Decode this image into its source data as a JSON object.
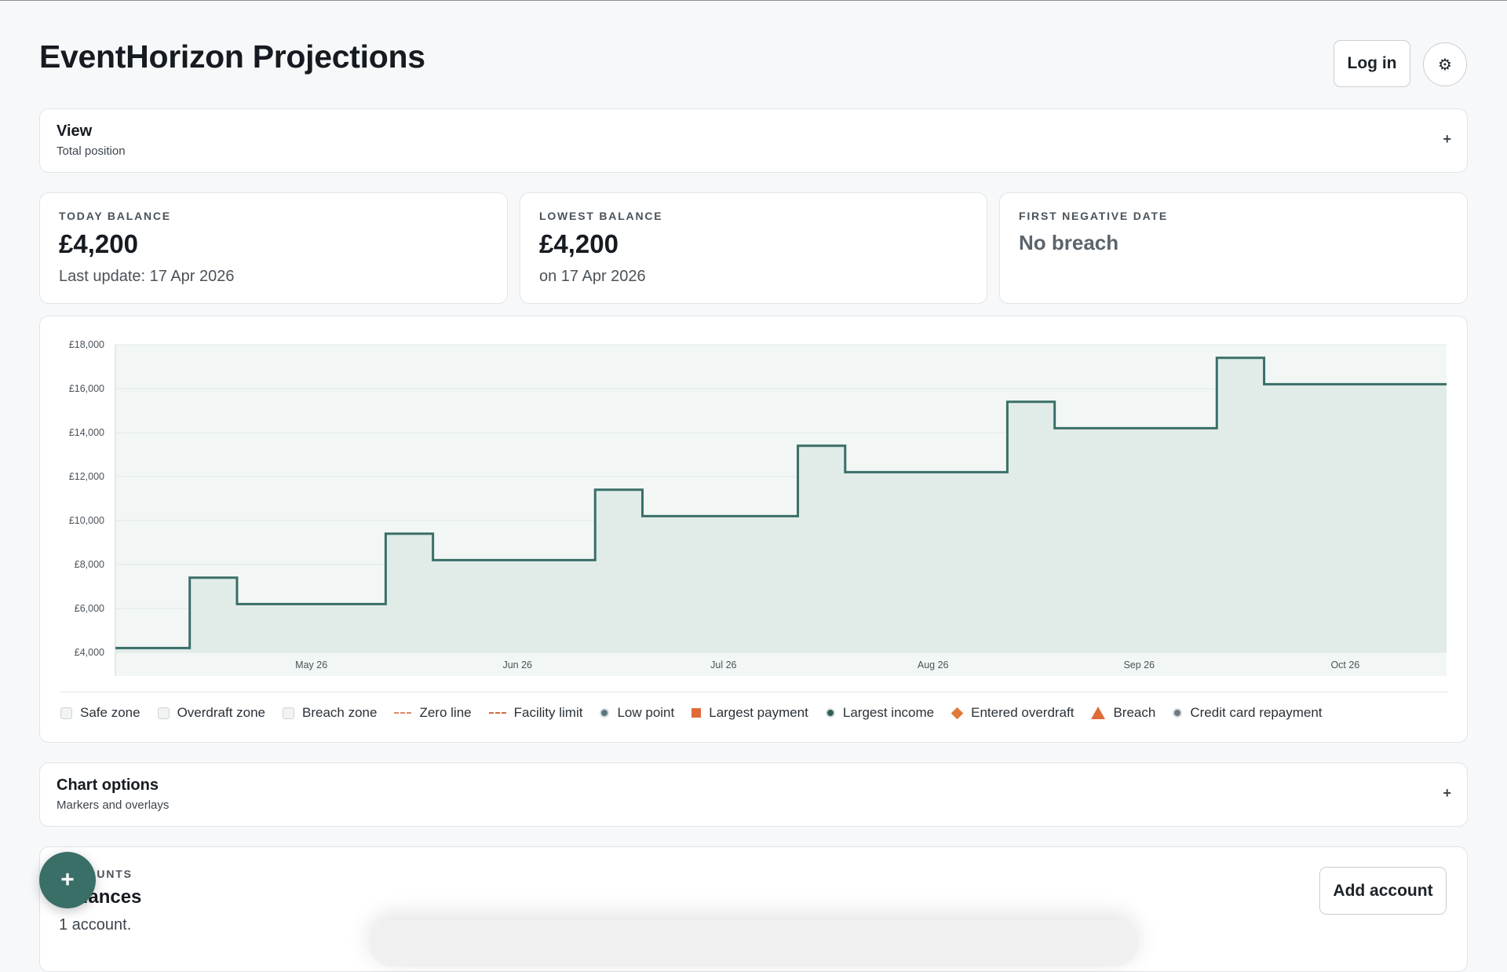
{
  "header": {
    "title": "EventHorizon Projections",
    "login_label": "Log in",
    "settings_icon": "⚙"
  },
  "view_panel": {
    "title": "View",
    "subtitle": "Total position",
    "toggle": "+"
  },
  "stats": [
    {
      "label": "TODAY BALANCE",
      "value": "£4,200",
      "note": "Last update: 17 Apr 2026"
    },
    {
      "label": "LOWEST BALANCE",
      "value": "£4,200",
      "note": "on 17 Apr 2026"
    },
    {
      "label": "FIRST NEGATIVE DATE",
      "value": "No breach"
    }
  ],
  "chart_data": {
    "type": "line",
    "step": true,
    "fill": "area",
    "y_ticks": [
      "£18,000",
      "£16,000",
      "£14,000",
      "£12,000",
      "£10,000",
      "£8,000",
      "£6,000",
      "£4,000"
    ],
    "x_ticks": [
      "May 26",
      "Jun 26",
      "Jul 26",
      "Aug 26",
      "Sep 26",
      "Oct 26"
    ],
    "ylim": [
      4000,
      18000
    ],
    "xlim": [
      "2026-04-17",
      "2026-10-31"
    ],
    "grid": true,
    "line_color": "#3a6f68",
    "fill_color": "#e1ece8",
    "series": [
      {
        "points": [
          [
            "2026-04-17",
            4200
          ],
          [
            "2026-04-28",
            7400
          ],
          [
            "2026-05-05",
            6200
          ],
          [
            "2026-05-27",
            9400
          ],
          [
            "2026-06-03",
            8200
          ],
          [
            "2026-06-27",
            11400
          ],
          [
            "2026-07-04",
            10200
          ],
          [
            "2026-07-27",
            13400
          ],
          [
            "2026-08-03",
            12200
          ],
          [
            "2026-08-27",
            15400
          ],
          [
            "2026-09-03",
            14200
          ],
          [
            "2026-09-27",
            17400
          ],
          [
            "2026-10-04",
            16200
          ],
          [
            "2026-10-31",
            16200
          ]
        ]
      }
    ],
    "legend": [
      {
        "label": "Safe zone",
        "kind": "box",
        "color": "#f1f4f3"
      },
      {
        "label": "Overdraft zone",
        "kind": "box",
        "color": "#f1f4f3"
      },
      {
        "label": "Breach zone",
        "kind": "box",
        "color": "#f1f4f3"
      },
      {
        "label": "Zero line",
        "kind": "dash",
        "color": "#d98a6a"
      },
      {
        "label": "Facility limit",
        "kind": "dash",
        "color": "#d36a3f"
      },
      {
        "label": "Low point",
        "kind": "dot",
        "color": "#5b7580"
      },
      {
        "label": "Largest payment",
        "kind": "square",
        "color": "#e06a3a"
      },
      {
        "label": "Largest income",
        "kind": "dot",
        "color": "#2f5f57"
      },
      {
        "label": "Entered overdraft",
        "kind": "diamond",
        "color": "#e07a3a"
      },
      {
        "label": "Breach",
        "kind": "triangle",
        "color": "#e06a3a"
      },
      {
        "label": "Credit card repayment",
        "kind": "dot",
        "color": "#6f7a80"
      }
    ]
  },
  "chart_options_panel": {
    "title": "Chart options",
    "subtitle": "Markers and overlays",
    "toggle": "+"
  },
  "accounts": {
    "eyebrow": "ACCOUNTS",
    "title": "Balances",
    "count": "1 account.",
    "add_label": "Add account"
  },
  "fab": {
    "label": "+"
  }
}
